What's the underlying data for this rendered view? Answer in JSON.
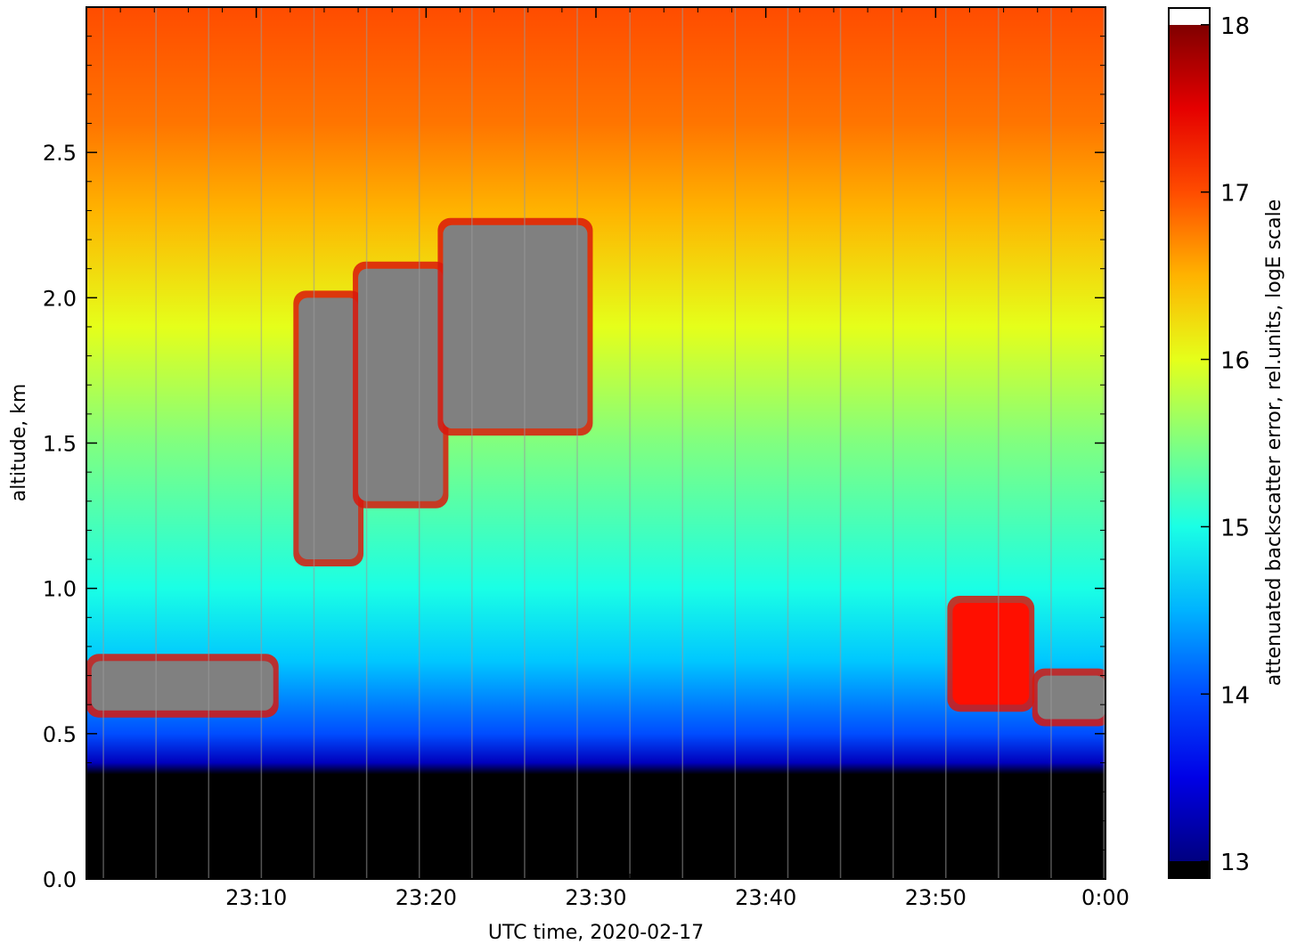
{
  "chart_data": {
    "type": "heatmap",
    "title": "",
    "xlabel": "UTC time,  2020-02-17",
    "ylabel": "altitude, km",
    "x_range": [
      "23:00",
      "24:00"
    ],
    "x_ticks": [
      {
        "minutes": 10,
        "label": "23:10"
      },
      {
        "minutes": 20,
        "label": "23:20"
      },
      {
        "minutes": 30,
        "label": "23:30"
      },
      {
        "minutes": 40,
        "label": "23:40"
      },
      {
        "minutes": 50,
        "label": "23:50"
      },
      {
        "minutes": 60,
        "label": "0:00"
      }
    ],
    "y_range": [
      0,
      3.0
    ],
    "y_ticks": [
      {
        "value": 0.0,
        "label": "0.0"
      },
      {
        "value": 0.5,
        "label": "0.5"
      },
      {
        "value": 1.0,
        "label": "1.0"
      },
      {
        "value": 1.5,
        "label": "1.5"
      },
      {
        "value": 2.0,
        "label": "2.0"
      },
      {
        "value": 2.5,
        "label": "2.5"
      }
    ],
    "colorbar": {
      "label": "attenuated backscatter error, rel.units, logE scale",
      "range": [
        12.9,
        18.1
      ],
      "ticks": [
        {
          "value": 13,
          "label": "13"
        },
        {
          "value": 14,
          "label": "14"
        },
        {
          "value": 15,
          "label": "15"
        },
        {
          "value": 16,
          "label": "16"
        },
        {
          "value": 17,
          "label": "17"
        },
        {
          "value": 18,
          "label": "18"
        }
      ],
      "colormap": "jet",
      "under_color": "#000000",
      "over_color": "#ffffff"
    },
    "field_profile": [
      {
        "altitude": 0.0,
        "value": 12.9
      },
      {
        "altitude": 0.36,
        "value": 12.9
      },
      {
        "altitude": 0.4,
        "value": 13.3
      },
      {
        "altitude": 0.5,
        "value": 14.0
      },
      {
        "altitude": 0.75,
        "value": 14.6
      },
      {
        "altitude": 1.0,
        "value": 15.0
      },
      {
        "altitude": 1.5,
        "value": 15.5
      },
      {
        "altitude": 1.9,
        "value": 16.0
      },
      {
        "altitude": 2.3,
        "value": 16.5
      },
      {
        "altitude": 2.6,
        "value": 16.8
      },
      {
        "altitude": 3.0,
        "value": 17.0
      }
    ],
    "cloud_layers": [
      {
        "t_start": 0.3,
        "t_end": 11,
        "alt_bottom": 0.58,
        "alt_top": 0.75,
        "value": 18.1
      },
      {
        "t_start": 12.5,
        "t_end": 16,
        "alt_bottom": 1.1,
        "alt_top": 2.0,
        "value": 18.1
      },
      {
        "t_start": 16,
        "t_end": 21,
        "alt_bottom": 1.3,
        "alt_top": 2.1,
        "value": 18.1
      },
      {
        "t_start": 21,
        "t_end": 29.5,
        "alt_bottom": 1.55,
        "alt_top": 2.25,
        "value": 18.1
      },
      {
        "t_start": 51,
        "t_end": 55.5,
        "alt_bottom": 0.6,
        "alt_top": 0.95,
        "value": 17.3
      },
      {
        "t_start": 56,
        "t_end": 60,
        "alt_bottom": 0.55,
        "alt_top": 0.7,
        "value": 18.1
      }
    ]
  }
}
